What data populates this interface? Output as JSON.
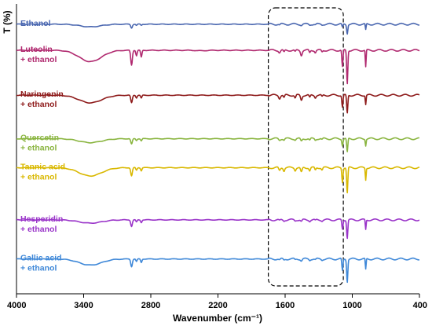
{
  "chart_data": {
    "type": "line",
    "xlabel": "Wavenumber (cm⁻¹)",
    "ylabel": "T (%)",
    "xlim": [
      4000,
      400
    ],
    "x_reversed": true,
    "xticks": [
      "4000",
      "3400",
      "2800",
      "2200",
      "1600",
      "1000",
      "400"
    ],
    "highlight_region": {
      "x_range": [
        1750,
        1080
      ],
      "style": "dashed-box"
    },
    "grid": false,
    "series": [
      {
        "name": "Ethanol",
        "label_lines": [
          "Ethanol"
        ],
        "color": "#4a67b0",
        "baseline": 0.93,
        "broad": [
          {
            "c": 3340,
            "w": 130,
            "d": 0.12
          }
        ],
        "bands": [
          {
            "c": 2972,
            "w": 10,
            "d": 0.17
          },
          {
            "c": 2928,
            "w": 8,
            "d": 0.06
          },
          {
            "c": 2885,
            "w": 8,
            "d": 0.05
          },
          {
            "c": 1650,
            "w": 8,
            "d": 0.04
          },
          {
            "c": 1455,
            "w": 10,
            "d": 0.04
          },
          {
            "c": 1380,
            "w": 8,
            "d": 0.03
          },
          {
            "c": 1330,
            "w": 8,
            "d": 0.03
          },
          {
            "c": 1270,
            "w": 8,
            "d": 0.02
          },
          {
            "c": 1088,
            "w": 7,
            "d": 0.16
          },
          {
            "c": 1045,
            "w": 7,
            "d": 0.42
          },
          {
            "c": 880,
            "w": 5,
            "d": 0.28
          }
        ]
      },
      {
        "name": "Luteolin + ethanol",
        "label_lines": [
          "Luteolin",
          "+ ethanol"
        ],
        "color": "#b0296f",
        "baseline": 0.84,
        "broad": [
          {
            "c": 3340,
            "w": 140,
            "d": 0.52
          },
          {
            "c": 2350,
            "w": 60,
            "d": 0.02
          }
        ],
        "bands": [
          {
            "c": 2972,
            "w": 10,
            "d": 0.68
          },
          {
            "c": 2928,
            "w": 8,
            "d": 0.25
          },
          {
            "c": 2885,
            "w": 8,
            "d": 0.32
          },
          {
            "c": 1650,
            "w": 10,
            "d": 0.1
          },
          {
            "c": 1610,
            "w": 8,
            "d": 0.1
          },
          {
            "c": 1510,
            "w": 8,
            "d": 0.08
          },
          {
            "c": 1455,
            "w": 10,
            "d": 0.22
          },
          {
            "c": 1380,
            "w": 8,
            "d": 0.12
          },
          {
            "c": 1330,
            "w": 8,
            "d": 0.1
          },
          {
            "c": 1270,
            "w": 8,
            "d": 0.08
          },
          {
            "c": 1088,
            "w": 7,
            "d": 0.78
          },
          {
            "c": 1045,
            "w": 7,
            "d": 1.55
          },
          {
            "c": 880,
            "w": 5,
            "d": 0.78
          }
        ]
      },
      {
        "name": "Naringenin + ethanol",
        "label_lines": [
          "Naringenin",
          "+ ethanol"
        ],
        "color": "#8e1b1b",
        "baseline": 0.685,
        "broad": [
          {
            "c": 3340,
            "w": 140,
            "d": 0.35
          }
        ],
        "bands": [
          {
            "c": 2972,
            "w": 10,
            "d": 0.35
          },
          {
            "c": 2928,
            "w": 8,
            "d": 0.12
          },
          {
            "c": 2885,
            "w": 8,
            "d": 0.14
          },
          {
            "c": 1650,
            "w": 10,
            "d": 0.14
          },
          {
            "c": 1610,
            "w": 8,
            "d": 0.12
          },
          {
            "c": 1510,
            "w": 8,
            "d": 0.14
          },
          {
            "c": 1455,
            "w": 10,
            "d": 0.22
          },
          {
            "c": 1380,
            "w": 8,
            "d": 0.12
          },
          {
            "c": 1330,
            "w": 8,
            "d": 0.1
          },
          {
            "c": 1270,
            "w": 8,
            "d": 0.08
          },
          {
            "c": 1088,
            "w": 7,
            "d": 0.55
          },
          {
            "c": 1045,
            "w": 7,
            "d": 0.85
          },
          {
            "c": 880,
            "w": 5,
            "d": 0.42
          }
        ]
      },
      {
        "name": "Quercetin + ethanol",
        "label_lines": [
          "Quercetin",
          "+ ethanol"
        ],
        "color": "#8ab540",
        "baseline": 0.535,
        "broad": [
          {
            "c": 3340,
            "w": 140,
            "d": 0.18
          }
        ],
        "bands": [
          {
            "c": 2972,
            "w": 10,
            "d": 0.25
          },
          {
            "c": 2928,
            "w": 8,
            "d": 0.08
          },
          {
            "c": 2885,
            "w": 8,
            "d": 0.1
          },
          {
            "c": 1650,
            "w": 10,
            "d": 0.06
          },
          {
            "c": 1610,
            "w": 8,
            "d": 0.06
          },
          {
            "c": 1510,
            "w": 8,
            "d": 0.05
          },
          {
            "c": 1455,
            "w": 10,
            "d": 0.12
          },
          {
            "c": 1380,
            "w": 8,
            "d": 0.08
          },
          {
            "c": 1330,
            "w": 8,
            "d": 0.06
          },
          {
            "c": 1270,
            "w": 8,
            "d": 0.05
          },
          {
            "c": 1088,
            "w": 7,
            "d": 0.3
          },
          {
            "c": 1045,
            "w": 7,
            "d": 0.65
          },
          {
            "c": 880,
            "w": 5,
            "d": 0.3
          }
        ]
      },
      {
        "name": "Tannic acid + ethanol",
        "label_lines": [
          "Tannic acid",
          "+ ethanol"
        ],
        "color": "#d9b800",
        "baseline": 0.435,
        "broad": [
          {
            "c": 3340,
            "w": 140,
            "d": 0.38
          }
        ],
        "bands": [
          {
            "c": 2972,
            "w": 10,
            "d": 0.38
          },
          {
            "c": 2928,
            "w": 8,
            "d": 0.12
          },
          {
            "c": 2885,
            "w": 8,
            "d": 0.14
          },
          {
            "c": 1650,
            "w": 10,
            "d": 0.14
          },
          {
            "c": 1610,
            "w": 8,
            "d": 0.14
          },
          {
            "c": 1510,
            "w": 8,
            "d": 0.12
          },
          {
            "c": 1455,
            "w": 10,
            "d": 0.22
          },
          {
            "c": 1380,
            "w": 8,
            "d": 0.14
          },
          {
            "c": 1330,
            "w": 8,
            "d": 0.12
          },
          {
            "c": 1270,
            "w": 8,
            "d": 0.1
          },
          {
            "c": 1088,
            "w": 7,
            "d": 0.65
          },
          {
            "c": 1045,
            "w": 7,
            "d": 1.2
          },
          {
            "c": 880,
            "w": 5,
            "d": 0.55
          }
        ]
      },
      {
        "name": "Hesperidin + ethanol",
        "label_lines": [
          "Hesperidin",
          "+ ethanol"
        ],
        "color": "#9a35c9",
        "baseline": 0.255,
        "broad": [
          {
            "c": 3340,
            "w": 140,
            "d": 0.15
          }
        ],
        "bands": [
          {
            "c": 2972,
            "w": 10,
            "d": 0.3
          },
          {
            "c": 2928,
            "w": 8,
            "d": 0.1
          },
          {
            "c": 2885,
            "w": 8,
            "d": 0.12
          },
          {
            "c": 1650,
            "w": 10,
            "d": 0.04
          },
          {
            "c": 1610,
            "w": 8,
            "d": 0.04
          },
          {
            "c": 1510,
            "w": 8,
            "d": 0.04
          },
          {
            "c": 1455,
            "w": 10,
            "d": 0.08
          },
          {
            "c": 1380,
            "w": 8,
            "d": 0.05
          },
          {
            "c": 1330,
            "w": 8,
            "d": 0.04
          },
          {
            "c": 1270,
            "w": 8,
            "d": 0.04
          },
          {
            "c": 1088,
            "w": 7,
            "d": 0.42
          },
          {
            "c": 1045,
            "w": 7,
            "d": 0.85
          },
          {
            "c": 880,
            "w": 5,
            "d": 0.45
          }
        ]
      },
      {
        "name": "Gallic acid + ethanol",
        "label_lines": [
          "Gallic acid",
          "+ ethanol"
        ],
        "color": "#3f88d8",
        "baseline": 0.12,
        "broad": [
          {
            "c": 3340,
            "w": 140,
            "d": 0.28
          }
        ],
        "bands": [
          {
            "c": 2972,
            "w": 10,
            "d": 0.35
          },
          {
            "c": 2928,
            "w": 8,
            "d": 0.12
          },
          {
            "c": 2885,
            "w": 8,
            "d": 0.16
          },
          {
            "c": 1650,
            "w": 10,
            "d": 0.05
          },
          {
            "c": 1610,
            "w": 8,
            "d": 0.05
          },
          {
            "c": 1510,
            "w": 8,
            "d": 0.04
          },
          {
            "c": 1455,
            "w": 10,
            "d": 0.08
          },
          {
            "c": 1380,
            "w": 8,
            "d": 0.05
          },
          {
            "c": 1330,
            "w": 8,
            "d": 0.04
          },
          {
            "c": 1270,
            "w": 8,
            "d": 0.04
          },
          {
            "c": 1088,
            "w": 7,
            "d": 0.55
          },
          {
            "c": 1045,
            "w": 7,
            "d": 1.05
          },
          {
            "c": 880,
            "w": 5,
            "d": 0.5
          }
        ]
      }
    ]
  }
}
